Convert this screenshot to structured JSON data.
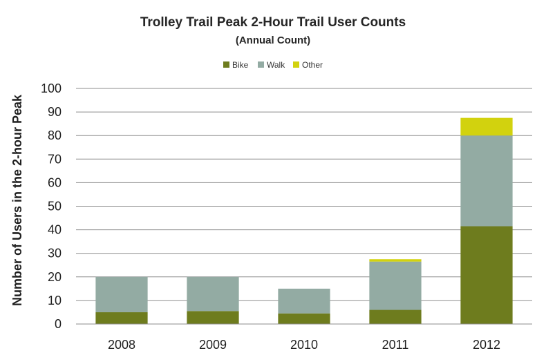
{
  "chart_data": {
    "type": "bar",
    "stacked": true,
    "title": "Trolley Trail Peak 2-Hour Trail User Counts",
    "subtitle": "(Annual Count)",
    "xlabel": "",
    "ylabel": "Number of Users in the 2-hour Peak",
    "categories": [
      "2008",
      "2009",
      "2010",
      "2011",
      "2012"
    ],
    "series": [
      {
        "name": "Bike",
        "values": [
          5,
          5.5,
          4.5,
          6,
          41.5
        ],
        "color": "#6e7c1e"
      },
      {
        "name": "Walk",
        "values": [
          15,
          14.5,
          10.5,
          20.5,
          38.5
        ],
        "color": "#93aba3"
      },
      {
        "name": "Other",
        "values": [
          0,
          0,
          0,
          1,
          7.5
        ],
        "color": "#d2d20e"
      }
    ],
    "ylim": [
      0,
      100
    ],
    "yticks": [
      0,
      10,
      20,
      30,
      40,
      50,
      60,
      70,
      80,
      90,
      100
    ],
    "grid": true,
    "legend_position": "top-center"
  }
}
